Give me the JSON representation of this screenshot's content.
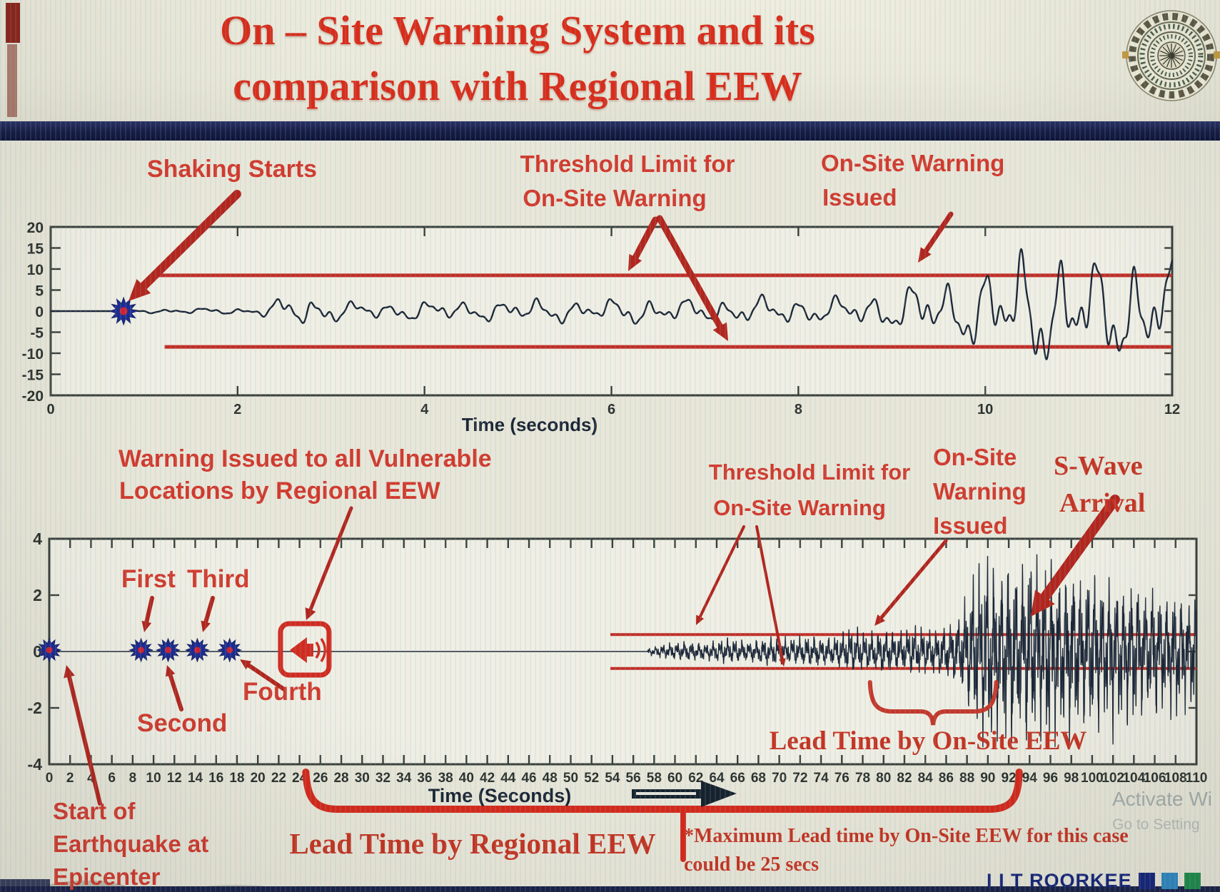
{
  "title": {
    "line1": "On – Site Warning System and its",
    "line2": "comparison with Regional EEW"
  },
  "labels": {
    "shaking_starts": "Shaking Starts",
    "threshold_top_l1": "Threshold Limit for",
    "threshold_top_l2": "On-Site Warning",
    "onsite_top_l1": "On-Site Warning",
    "onsite_top_l2": "Issued",
    "warning_regional_l1": "Warning Issued to all Vulnerable",
    "warning_regional_l2": "Locations by Regional EEW",
    "first": "First",
    "second": "Second",
    "third": "Third",
    "fourth": "Fourth",
    "threshold_bottom_l1": "Threshold Limit for",
    "threshold_bottom_l2": "On-Site Warning",
    "onsite_bottom_l1": "On-Site",
    "onsite_bottom_l2": "Warning",
    "onsite_bottom_l3": "Issued",
    "swave_l1": "S-Wave",
    "swave_l2": "Arrival",
    "lead_onsite": "Lead Time by On-Site EEW",
    "lead_regional": "Lead Time by Regional EEW",
    "epicenter_l1": "Start of",
    "epicenter_l2": "Earthquake at",
    "epicenter_l3": "Epicenter",
    "note_l1": "*Maximum Lead time by On-Site EEW for this case",
    "note_l2": "could be 25 secs"
  },
  "footer": {
    "text": "I I T ROORKEE",
    "squares": [
      "#16247a",
      "#2e86c1",
      "#1e8a4a"
    ]
  },
  "watermark": {
    "line1": "Activate Wi",
    "line2": "Go to Setting"
  },
  "colors": {
    "title_red": "#da2c1a",
    "annotation_red": "#d3382c",
    "arrow_red": "#b3251d",
    "threshold_red": "#c22d26",
    "bracket_red": "#d6281a",
    "waveform": "#1d2637",
    "axis": "#3a3f3a",
    "tick_text": "#2c302c",
    "navy": "#1b2150",
    "marker_blue": "#1e2c93",
    "marker_core": "#cc2233",
    "footer_blue": "#16247a"
  },
  "chart_data": [
    {
      "type": "line",
      "subtype": "seismogram",
      "title": "",
      "xlabel": "Time (seconds)",
      "ylabel": "",
      "xlim": [
        0,
        12
      ],
      "xticks": [
        0,
        2,
        4,
        6,
        8,
        10,
        12
      ],
      "ylim": [
        -20,
        20
      ],
      "yticks": [
        20,
        15,
        10,
        5,
        0,
        -5,
        -10,
        -15,
        -20
      ],
      "grid": false,
      "thresholds": {
        "upper": 8.5,
        "lower": -8.5,
        "start_t": 1.15,
        "label": "Threshold Limit for On-Site Warning"
      },
      "p_wave_marker": {
        "t": 0.78,
        "y": 0,
        "label": "Shaking Starts"
      },
      "onsite_warning_issued_t": 9.3,
      "amplitude_envelope": [
        [
          0.82,
          0.35
        ],
        [
          1.3,
          0.7
        ],
        [
          2.2,
          0.95
        ],
        [
          2.45,
          3.4
        ],
        [
          2.8,
          4.3
        ],
        [
          3.15,
          2.6
        ],
        [
          3.6,
          2.2
        ],
        [
          4.1,
          2.9
        ],
        [
          4.6,
          2.6
        ],
        [
          5.2,
          3.3
        ],
        [
          5.8,
          2.8
        ],
        [
          6.3,
          3.8
        ],
        [
          6.8,
          3.1
        ],
        [
          7.3,
          3.5
        ],
        [
          7.8,
          3.9
        ],
        [
          8.3,
          3.4
        ],
        [
          8.8,
          4.6
        ],
        [
          9.1,
          5.6
        ],
        [
          9.3,
          8.8
        ],
        [
          9.55,
          7.4
        ],
        [
          9.85,
          10.2
        ],
        [
          10.2,
          13.5
        ],
        [
          10.45,
          17
        ],
        [
          10.7,
          14.8
        ],
        [
          10.95,
          16.8
        ],
        [
          11.2,
          13.2
        ],
        [
          11.45,
          15.8
        ],
        [
          11.7,
          14.2
        ],
        [
          12,
          13
        ]
      ]
    },
    {
      "type": "line",
      "subtype": "seismogram",
      "title": "",
      "xlabel": "Time (Seconds)",
      "ylabel": "",
      "xlim": [
        0,
        110
      ],
      "xticks": [
        0,
        2,
        4,
        6,
        8,
        10,
        12,
        14,
        16,
        18,
        20,
        22,
        24,
        26,
        28,
        30,
        32,
        34,
        36,
        38,
        40,
        42,
        44,
        46,
        48,
        50,
        52,
        54,
        56,
        58,
        60,
        62,
        64,
        66,
        68,
        70,
        72,
        74,
        76,
        78,
        80,
        82,
        84,
        86,
        88,
        90,
        92,
        94,
        96,
        98,
        100,
        102,
        104,
        106,
        108,
        110
      ],
      "ylim": [
        -4,
        4
      ],
      "yticks": [
        4,
        2,
        0,
        -2,
        -4
      ],
      "grid": false,
      "thresholds": {
        "upper": 0.6,
        "lower": -0.6,
        "start_t": 53.8,
        "label": "Threshold Limit for On-Site Warning"
      },
      "p_wave_detections": [
        {
          "t": 0,
          "label": "Start of Earthquake at Epicenter"
        },
        {
          "t": 8.8,
          "label": "First"
        },
        {
          "t": 11.4,
          "label": "Second"
        },
        {
          "t": 14.2,
          "label": "Third"
        },
        {
          "t": 17.3,
          "label": "Fourth"
        }
      ],
      "regional_warning": {
        "t": 24.5,
        "label": "Warning Issued to all Vulnerable Locations by Regional EEW"
      },
      "onsite_warning_issued_t": 79,
      "s_wave_arrival_t": 93.5,
      "lead_time_regional": {
        "from_t": 24.6,
        "to_t": 93,
        "label": "Lead Time by Regional EEW"
      },
      "lead_time_onsite": {
        "from_t": 78.7,
        "to_t": 90.8,
        "label": "Lead Time by On-Site EEW"
      },
      "note": "*Maximum Lead time by On-Site EEW for this case could be 25 secs",
      "amplitude_envelope": [
        [
          57.4,
          0.12
        ],
        [
          59,
          0.28
        ],
        [
          61,
          0.38
        ],
        [
          63,
          0.32
        ],
        [
          65,
          0.48
        ],
        [
          67,
          0.38
        ],
        [
          69,
          0.55
        ],
        [
          71,
          0.48
        ],
        [
          73,
          0.6
        ],
        [
          75,
          0.52
        ],
        [
          77,
          0.85
        ],
        [
          78.5,
          0.7
        ],
        [
          80,
          0.85
        ],
        [
          81.5,
          0.72
        ],
        [
          83,
          0.95
        ],
        [
          84.5,
          0.8
        ],
        [
          86,
          1.0
        ],
        [
          87.2,
          1.3
        ],
        [
          88.2,
          2.4
        ],
        [
          89,
          3.2
        ],
        [
          90,
          3.7
        ],
        [
          91,
          3.0
        ],
        [
          92,
          3.7
        ],
        [
          93,
          3.1
        ],
        [
          94,
          3.8
        ],
        [
          95,
          3.2
        ],
        [
          96,
          3.6
        ],
        [
          97,
          2.9
        ],
        [
          98,
          3.4
        ],
        [
          99,
          2.8
        ],
        [
          100,
          3.25
        ],
        [
          101,
          2.6
        ],
        [
          102,
          3.0
        ],
        [
          103,
          2.45
        ],
        [
          104,
          2.85
        ],
        [
          105,
          2.25
        ],
        [
          106,
          2.6
        ],
        [
          107,
          2.1
        ],
        [
          108,
          2.45
        ],
        [
          109,
          2.0
        ],
        [
          110,
          2.3
        ]
      ]
    }
  ]
}
